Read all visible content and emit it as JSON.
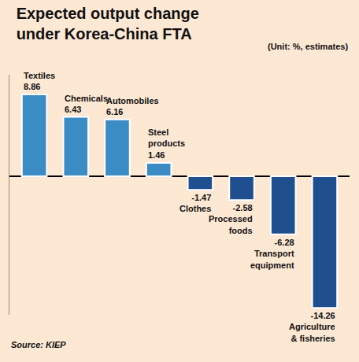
{
  "chart_data": {
    "type": "bar",
    "title": "Expected output change under Korea-China FTA",
    "subtitle": "(Unit: %, estimates)",
    "source": "Source: KIEP",
    "categories": [
      "Textiles",
      "Chemicals",
      "Automobiles",
      "Steel products",
      "Clothes",
      "Processed foods",
      "Transport equipment",
      "Agriculture & fisheries"
    ],
    "values": [
      8.86,
      6.43,
      6.16,
      1.46,
      -1.47,
      -2.58,
      -6.28,
      -14.26
    ],
    "colors": [
      "#3b8cc4",
      "#3b8cc4",
      "#3b8cc4",
      "#3b8cc4",
      "#1f4f8f",
      "#1f4f8f",
      "#1f4f8f",
      "#1f4f8f"
    ],
    "ylim": [
      -15,
      11
    ],
    "grid": false,
    "data_labels": true,
    "tick_labels": false
  }
}
